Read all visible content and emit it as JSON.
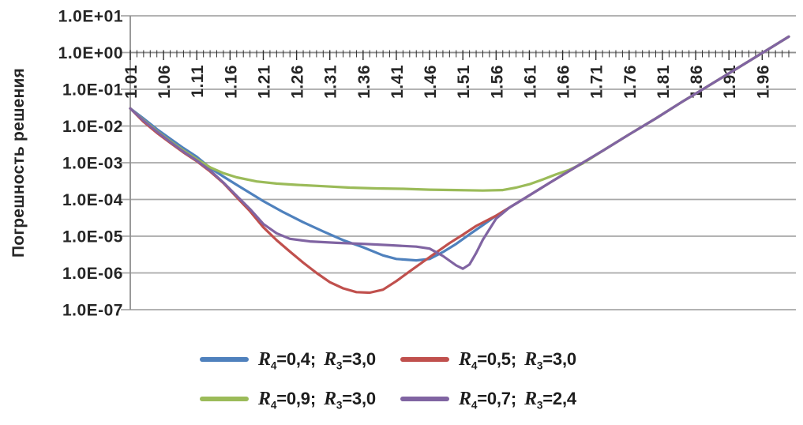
{
  "chart_data": {
    "type": "line",
    "title": "",
    "xlabel": "",
    "ylabel": "Погрешность решения",
    "y_scale": "log",
    "ylim": [
      1e-07,
      10
    ],
    "xlim": [
      1.01,
      2.0
    ],
    "grid": true,
    "legend_position": "bottom",
    "y_ticks": [
      {
        "label": "1.0E+01",
        "value": 10
      },
      {
        "label": "1.0E+00",
        "value": 1
      },
      {
        "label": "1.0E-01",
        "value": 0.1
      },
      {
        "label": "1.0E-02",
        "value": 0.01
      },
      {
        "label": "1.0E-03",
        "value": 0.001
      },
      {
        "label": "1.0E-04",
        "value": 0.0001
      },
      {
        "label": "1.0E-05",
        "value": 1e-05
      },
      {
        "label": "1.0E-06",
        "value": 1e-06
      },
      {
        "label": "1.0E-07",
        "value": 1e-07
      }
    ],
    "x_tick_labels": [
      "1.01",
      "1.06",
      "1.11",
      "1.16",
      "1.21",
      "1.26",
      "1.31",
      "1.36",
      "1.41",
      "1.46",
      "1.51",
      "1.56",
      "1.61",
      "1.66",
      "1.71",
      "1.76",
      "1.81",
      "1.86",
      "1.91",
      "1.96"
    ],
    "x_major_tick_step": 0.05,
    "x_minor_tick_step": 0.01,
    "series": [
      {
        "name": "R4=0,4; R3=3,0",
        "color": "#4F81BD",
        "legend_parts": [
          [
            "ri",
            "R"
          ],
          [
            "sub",
            "4"
          ],
          [
            "t",
            "=0,4;  "
          ],
          [
            "ri",
            "R"
          ],
          [
            "sub",
            "3"
          ],
          [
            "t",
            "=3,0"
          ]
        ],
        "points": [
          [
            1.01,
            0.03
          ],
          [
            1.03,
            0.016
          ],
          [
            1.05,
            0.0082
          ],
          [
            1.07,
            0.0045
          ],
          [
            1.09,
            0.0025
          ],
          [
            1.11,
            0.00145
          ],
          [
            1.13,
            0.00072
          ],
          [
            1.15,
            0.00042
          ],
          [
            1.17,
            0.00025
          ],
          [
            1.19,
            0.00015
          ],
          [
            1.21,
            9e-05
          ],
          [
            1.24,
            4.5e-05
          ],
          [
            1.27,
            2.4e-05
          ],
          [
            1.3,
            1.35e-05
          ],
          [
            1.33,
            7.8e-06
          ],
          [
            1.36,
            5e-06
          ],
          [
            1.39,
            3e-06
          ],
          [
            1.41,
            2.4e-06
          ],
          [
            1.44,
            2.2e-06
          ],
          [
            1.46,
            2.4e-06
          ],
          [
            1.48,
            3.7e-06
          ],
          [
            1.5,
            6.2e-06
          ],
          [
            1.52,
            1.12e-05
          ],
          [
            1.54,
            2e-05
          ],
          [
            1.56,
            3.6e-05
          ],
          [
            1.6,
            0.0001
          ],
          [
            1.64,
            0.00028
          ],
          [
            1.68,
            0.00077
          ],
          [
            1.72,
            0.0021
          ],
          [
            1.76,
            0.0059
          ],
          [
            1.8,
            0.016
          ],
          [
            1.84,
            0.046
          ],
          [
            1.88,
            0.126
          ],
          [
            1.92,
            0.35
          ],
          [
            1.96,
            0.97
          ],
          [
            2.0,
            2.7
          ]
        ]
      },
      {
        "name": "R4=0,5; R3=3,0",
        "color": "#C0504D",
        "legend_parts": [
          [
            "ri",
            "R"
          ],
          [
            "sub",
            "4"
          ],
          [
            "t",
            "=0,5;  "
          ],
          [
            "ri",
            "R"
          ],
          [
            "sub",
            "3"
          ],
          [
            "t",
            "=3,0"
          ]
        ],
        "points": [
          [
            1.01,
            0.03
          ],
          [
            1.03,
            0.013
          ],
          [
            1.05,
            0.0065
          ],
          [
            1.07,
            0.0035
          ],
          [
            1.09,
            0.0019
          ],
          [
            1.11,
            0.0011
          ],
          [
            1.13,
            0.00058
          ],
          [
            1.15,
            0.00028
          ],
          [
            1.17,
            0.000115
          ],
          [
            1.19,
            4.8e-05
          ],
          [
            1.21,
            1.75e-05
          ],
          [
            1.23,
            7.8e-06
          ],
          [
            1.25,
            3.8e-06
          ],
          [
            1.27,
            1.9e-06
          ],
          [
            1.29,
            1e-06
          ],
          [
            1.31,
            5.6e-07
          ],
          [
            1.33,
            3.8e-07
          ],
          [
            1.35,
            3e-07
          ],
          [
            1.37,
            2.9e-07
          ],
          [
            1.39,
            3.5e-07
          ],
          [
            1.41,
            6e-07
          ],
          [
            1.43,
            1.1e-06
          ],
          [
            1.45,
            2e-06
          ],
          [
            1.47,
            3.6e-06
          ],
          [
            1.49,
            6.5e-06
          ],
          [
            1.51,
            1.1e-05
          ],
          [
            1.53,
            1.9e-05
          ],
          [
            1.56,
            3.6e-05
          ],
          [
            1.6,
            0.0001
          ],
          [
            1.64,
            0.00028
          ],
          [
            1.68,
            0.00077
          ],
          [
            1.72,
            0.0021
          ],
          [
            1.76,
            0.0059
          ],
          [
            1.8,
            0.016
          ],
          [
            1.84,
            0.046
          ],
          [
            1.88,
            0.126
          ],
          [
            1.92,
            0.35
          ],
          [
            1.96,
            0.97
          ],
          [
            2.0,
            2.7
          ]
        ]
      },
      {
        "name": "R4=0,9; R3=3,0",
        "color": "#9BBB59",
        "legend_parts": [
          [
            "ri",
            "R"
          ],
          [
            "sub",
            "4"
          ],
          [
            "t",
            "=0,9;  "
          ],
          [
            "ri",
            "R"
          ],
          [
            "sub",
            "3"
          ],
          [
            "t",
            "=3,0"
          ]
        ],
        "points": [
          [
            1.01,
            0.03
          ],
          [
            1.03,
            0.0145
          ],
          [
            1.05,
            0.0073
          ],
          [
            1.07,
            0.0039
          ],
          [
            1.09,
            0.00215
          ],
          [
            1.11,
            0.00125
          ],
          [
            1.13,
            0.00075
          ],
          [
            1.15,
            0.00052
          ],
          [
            1.17,
            0.0004
          ],
          [
            1.2,
            0.00031
          ],
          [
            1.23,
            0.00027
          ],
          [
            1.26,
            0.00025
          ],
          [
            1.3,
            0.00023
          ],
          [
            1.34,
            0.00021
          ],
          [
            1.38,
            0.0002
          ],
          [
            1.42,
            0.000195
          ],
          [
            1.46,
            0.000185
          ],
          [
            1.5,
            0.00018
          ],
          [
            1.54,
            0.000175
          ],
          [
            1.57,
            0.00018
          ],
          [
            1.59,
            0.00021
          ],
          [
            1.61,
            0.00026
          ],
          [
            1.63,
            0.00035
          ],
          [
            1.65,
            0.00048
          ],
          [
            1.67,
            0.00064
          ],
          [
            1.69,
            0.00095
          ],
          [
            1.72,
            0.0021
          ],
          [
            1.76,
            0.0059
          ],
          [
            1.8,
            0.016
          ],
          [
            1.84,
            0.046
          ],
          [
            1.88,
            0.126
          ],
          [
            1.92,
            0.35
          ],
          [
            1.96,
            0.97
          ],
          [
            2.0,
            2.7
          ]
        ]
      },
      {
        "name": "R4=0,7; R3=2,4",
        "color": "#8064A2",
        "legend_parts": [
          [
            "ri",
            "R"
          ],
          [
            "sub",
            "4"
          ],
          [
            "t",
            "=0,7;  "
          ],
          [
            "ri",
            "R"
          ],
          [
            "sub",
            "3"
          ],
          [
            "t",
            "=2,4"
          ]
        ],
        "points": [
          [
            1.01,
            0.03
          ],
          [
            1.03,
            0.014
          ],
          [
            1.05,
            0.007
          ],
          [
            1.07,
            0.0037
          ],
          [
            1.09,
            0.002
          ],
          [
            1.11,
            0.00115
          ],
          [
            1.13,
            0.00062
          ],
          [
            1.15,
            0.00029
          ],
          [
            1.17,
            0.000125
          ],
          [
            1.19,
            5.5e-05
          ],
          [
            1.21,
            2.15e-05
          ],
          [
            1.23,
            1.2e-05
          ],
          [
            1.25,
            8.5e-06
          ],
          [
            1.28,
            7.2e-06
          ],
          [
            1.32,
            6.6e-06
          ],
          [
            1.36,
            6.2e-06
          ],
          [
            1.4,
            5.7e-06
          ],
          [
            1.44,
            5.2e-06
          ],
          [
            1.46,
            4.6e-06
          ],
          [
            1.48,
            2.9e-06
          ],
          [
            1.5,
            1.6e-06
          ],
          [
            1.51,
            1.3e-06
          ],
          [
            1.52,
            1.7e-06
          ],
          [
            1.53,
            3.5e-06
          ],
          [
            1.54,
            8e-06
          ],
          [
            1.56,
            3e-05
          ],
          [
            1.58,
            6e-05
          ],
          [
            1.6,
            0.0001
          ],
          [
            1.64,
            0.00028
          ],
          [
            1.68,
            0.00077
          ],
          [
            1.72,
            0.0021
          ],
          [
            1.76,
            0.0059
          ],
          [
            1.8,
            0.016
          ],
          [
            1.84,
            0.046
          ],
          [
            1.88,
            0.126
          ],
          [
            1.92,
            0.35
          ],
          [
            1.96,
            0.97
          ],
          [
            2.0,
            2.7
          ]
        ]
      }
    ],
    "style": {
      "grid_color": "#a8a8a8",
      "axis_color": "#8f8f8f",
      "tick_color": "#2f2f2f",
      "text_color": "#262626"
    }
  }
}
